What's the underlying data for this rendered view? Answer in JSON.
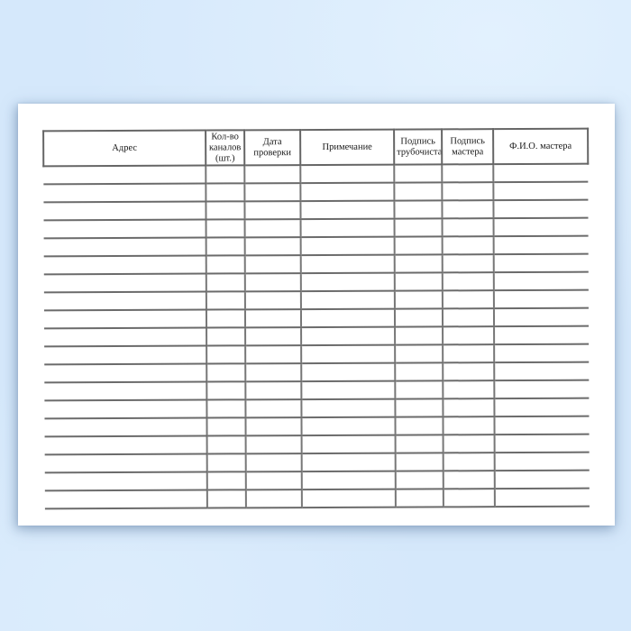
{
  "background": {
    "color": "#d5e8fb"
  },
  "paper": {
    "color": "#ffffff"
  },
  "table": {
    "title": "",
    "columns": [
      {
        "label": "Адрес"
      },
      {
        "label": "Кол-во каналов (шт.)"
      },
      {
        "label": "Дата проверки"
      },
      {
        "label": "Примечание"
      },
      {
        "label": "Подпись трубочиста"
      },
      {
        "label": "Подпись мастера"
      },
      {
        "label": "Ф.И.О. мастера"
      }
    ],
    "row_count": 19,
    "rows_are_empty": true,
    "line_color": "#6b6b6b",
    "text_color": "#1a1a1a"
  }
}
